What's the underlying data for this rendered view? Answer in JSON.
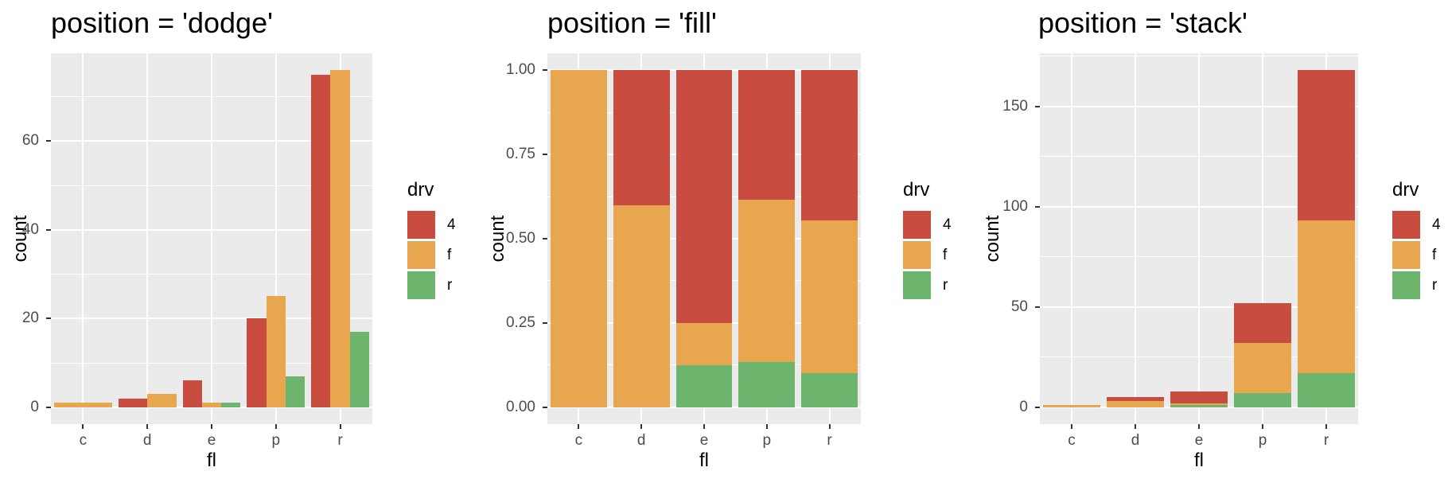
{
  "figure": {
    "background": "#FFFFFF",
    "panel_background": "#EBEBEB",
    "grid_color": "#FFFFFF",
    "tick_mark_color": "#333333",
    "tick_label_color": "#4D4D4D",
    "text_color": "#000000"
  },
  "legend": {
    "title": "drv",
    "entries": [
      {
        "label": "4",
        "color": "#C94C41"
      },
      {
        "label": "f",
        "color": "#E8A64E"
      },
      {
        "label": "r",
        "color": "#6DB56C"
      }
    ]
  },
  "chart_data": [
    {
      "type": "bar",
      "position": "dodge",
      "title": "position = 'dodge'",
      "xlabel": "fl",
      "ylabel": "count",
      "categories": [
        "c",
        "d",
        "e",
        "p",
        "r"
      ],
      "series": [
        {
          "name": "4",
          "color": "#C94C41",
          "values": [
            0,
            2,
            6,
            20,
            75
          ]
        },
        {
          "name": "f",
          "color": "#E8A64E",
          "values": [
            1,
            3,
            1,
            25,
            76
          ]
        },
        {
          "name": "r",
          "color": "#6DB56C",
          "values": [
            0,
            0,
            1,
            7,
            17
          ]
        }
      ],
      "ylim": [
        0,
        76
      ],
      "yticks": [
        {
          "v": 0,
          "label": "0"
        },
        {
          "v": 20,
          "label": "20"
        },
        {
          "v": 40,
          "label": "40"
        },
        {
          "v": 60,
          "label": "60"
        }
      ],
      "grid": true,
      "legend_position": "right"
    },
    {
      "type": "bar",
      "position": "fill",
      "title": "position = 'fill'",
      "xlabel": "fl",
      "ylabel": "count",
      "categories": [
        "c",
        "d",
        "e",
        "p",
        "r"
      ],
      "series": [
        {
          "name": "4",
          "color": "#C94C41",
          "values": [
            0,
            2,
            6,
            20,
            75
          ]
        },
        {
          "name": "f",
          "color": "#E8A64E",
          "values": [
            1,
            3,
            1,
            25,
            76
          ]
        },
        {
          "name": "r",
          "color": "#6DB56C",
          "values": [
            0,
            0,
            1,
            7,
            17
          ]
        }
      ],
      "proportions_note": "bars normalized to 1.0 per category; stacking bottom-to-top r, f, 4",
      "ylim": [
        0,
        1
      ],
      "yticks": [
        {
          "v": 0,
          "label": "0.00"
        },
        {
          "v": 0.25,
          "label": "0.25"
        },
        {
          "v": 0.5,
          "label": "0.50"
        },
        {
          "v": 0.75,
          "label": "0.75"
        },
        {
          "v": 1,
          "label": "1.00"
        }
      ],
      "grid": true,
      "legend_position": "right"
    },
    {
      "type": "bar",
      "position": "stack",
      "title": "position = 'stack'",
      "xlabel": "fl",
      "ylabel": "count",
      "categories": [
        "c",
        "d",
        "e",
        "p",
        "r"
      ],
      "series": [
        {
          "name": "4",
          "color": "#C94C41",
          "values": [
            0,
            2,
            6,
            20,
            75
          ]
        },
        {
          "name": "f",
          "color": "#E8A64E",
          "values": [
            1,
            3,
            1,
            25,
            76
          ]
        },
        {
          "name": "r",
          "color": "#6DB56C",
          "values": [
            0,
            0,
            1,
            7,
            17
          ]
        }
      ],
      "ylim": [
        0,
        168
      ],
      "yticks": [
        {
          "v": 0,
          "label": "0"
        },
        {
          "v": 50,
          "label": "50"
        },
        {
          "v": 100,
          "label": "100"
        },
        {
          "v": 150,
          "label": "150"
        }
      ],
      "grid": true,
      "legend_position": "right"
    }
  ]
}
